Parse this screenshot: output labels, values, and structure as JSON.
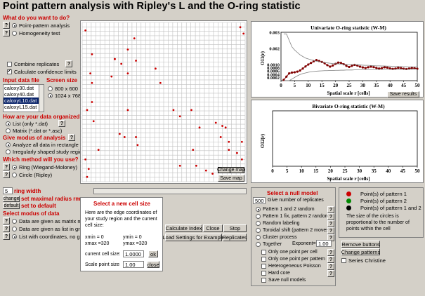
{
  "title": "Point pattern analysis with Ripley's L and the O-ring statistic",
  "question_todo": "What do you want to do?",
  "todo_options": [
    "Point-pattern analysis",
    "Homogeneity test"
  ],
  "combine_replicates": "Combine replicates",
  "calc_conf": "Calculate confidence limits",
  "input_file_label": "Input data file",
  "screen_size_label": "Screen size",
  "files": [
    "caloxy30.dat",
    "caloxy40.dat",
    "caloxyL10.dat",
    "caloxyL15.dat"
  ],
  "selected_file_index": 2,
  "screen_options": [
    "800 x 600",
    "1024 x 768"
  ],
  "organized_label": "How are your data organized?",
  "organized_options": [
    "List   (only *.dat)",
    "Matrix (*.dat or *.asc)"
  ],
  "analysis_label": "Give modus of analysis",
  "analysis_options": [
    "Analyze all data in rectangle",
    "Irregularly shaped study region"
  ],
  "method_label": "Which method will you use?",
  "method_options": [
    "Ring (Wiegand-Moloney)",
    "Circle (Ripley)"
  ],
  "ring_width_value": "5",
  "ring_width_label": "ring width",
  "change_btn": "change",
  "change_label": "set maximal radius rmax",
  "default_btn": "default",
  "default_label": "set to default",
  "modus_data_label": "Select modus of data",
  "modus_options": [
    "Data are given as matrix map",
    "Data are given as list in grid",
    "List with coordinates, no grid"
  ],
  "map_buttons": {
    "change": "Change map",
    "save": "Save map"
  },
  "cell_panel": {
    "heading": "Select a new cell size",
    "desc": "Here are the edge coordinates of your study region and the current cell size:",
    "xmin": "xmin = 0",
    "ymin": "ymin = 0",
    "xmax": "xmax =320",
    "ymax": "ymax =320",
    "cell_label": "current cell size:",
    "cell_value": "1.0000",
    "ok": "ok",
    "scale_label": "Scale point size",
    "scale_value": "1.00",
    "close": "close"
  },
  "action_buttons": {
    "calc": "Calculate Index",
    "close": "Close",
    "stop": "Stop",
    "load": "Load Settings for Example",
    "replicates": "Replicates"
  },
  "null_panel": {
    "heading": "Select a null model",
    "num_value": "500",
    "num_label": "Give number of replicates",
    "options": [
      "Pattern 1 and 2 random",
      "Pattern 1 fix, pattern 2 random",
      "Random labeling",
      "Toroidal shift (pattern 2 moves)",
      "Cluster process",
      "Together"
    ],
    "exponent_label": "Exponent=",
    "exponent_value": "1.00",
    "checks": [
      "Only one point per cell",
      "Only one point per pattern",
      "Heterogeneous Poisson",
      "Hard core",
      "Save null models"
    ]
  },
  "legend": {
    "items": [
      "Point(s) of pattern 1",
      "Point(s) of pattern 2",
      "Point(s) of pattern 1 and 2"
    ],
    "colors": [
      "#cc0000",
      "#008800",
      "#000000"
    ],
    "note": "The size of the circles is proportional to the number of points within the cell"
  },
  "bottom_right": {
    "remove": "Remove buttons",
    "change": "Change patterns",
    "series": "Series Christine"
  },
  "uni_chart_ylabel": "O11(r)",
  "bi_chart_ylabel": "O12(r)",
  "chart_data": [
    {
      "type": "line",
      "title": "Univariate O-ring statistic (W-M)",
      "xlabel": "Spatial scale r [cells]",
      "ylabel": "O11(r)",
      "xlim": [
        0,
        50
      ],
      "ylim": [
        0,
        0.003
      ],
      "x_ticks": [
        "0",
        "5",
        "10",
        "15",
        "20",
        "25",
        "30",
        "35",
        "40",
        "45",
        "50"
      ],
      "y_ticks": [
        "0.003",
        "0.002",
        "0.0010",
        "0.0008",
        "0.0006",
        "0.0004",
        "0.0002"
      ],
      "x": [
        1,
        2,
        3,
        4,
        5,
        6,
        7,
        8,
        9,
        10,
        11,
        12,
        13,
        14,
        15,
        16,
        17,
        18,
        19,
        20,
        21,
        22,
        23,
        24,
        25,
        26,
        27,
        28,
        29,
        30,
        31,
        32,
        33,
        34,
        35,
        36,
        37,
        38,
        39,
        40,
        41,
        42,
        43,
        44,
        45,
        46,
        47,
        48,
        49,
        50
      ],
      "series": [
        {
          "values": [
            5e-05,
            0.00025,
            0.00045,
            0.0005,
            0.00052,
            0.00056,
            0.00063,
            0.00075,
            0.00088,
            0.001,
            0.0011,
            0.0012,
            0.00128,
            0.00122,
            0.00116,
            0.00108,
            0.00096,
            0.00087,
            0.00094,
            0.00104,
            0.00112,
            0.0011,
            0.00102,
            0.00092,
            0.00085,
            0.00092,
            0.00098,
            0.00094,
            0.00087,
            0.00082,
            0.00078,
            0.00083,
            0.00087,
            0.00084,
            0.00079,
            0.00075,
            0.00078,
            0.00083,
            0.00081,
            0.00076,
            0.00073,
            0.00075,
            0.0008,
            0.00078,
            0.00074,
            0.00072,
            0.00075,
            0.00079,
            0.00077,
            0.00074
          ],
          "color": "#800000",
          "marker": "circle"
        },
        {
          "values": [
            0.0029,
            0.0029,
            0.0025,
            0.0021,
            0.0019,
            0.00175,
            0.0016,
            0.0015,
            0.0014,
            0.00135,
            0.0013,
            0.00125,
            0.0012,
            0.00118,
            0.00116,
            0.00112,
            0.0011,
            0.00108,
            0.00106,
            0.00105,
            0.00104,
            0.00103,
            0.00102,
            0.00101,
            0.001,
            0.001,
            0.00099,
            0.00098,
            0.00097,
            0.00096,
            0.00095,
            0.00095,
            0.00094,
            0.00093,
            0.00092,
            0.00092,
            0.00091,
            0.00091,
            0.0009,
            0.0009,
            0.00089,
            0.00089,
            0.00088,
            0.00088,
            0.00087,
            0.00087,
            0.00086,
            0.00086,
            0.00086,
            0.00085
          ],
          "color": "#808080",
          "role": "upper"
        },
        {
          "values": [
            0,
            0,
            0,
            0.0001,
            0.0002,
            0.0003,
            0.00038,
            0.00044,
            0.00048,
            0.00052,
            0.00055,
            0.00057,
            0.00059,
            0.0006,
            0.00061,
            0.00062,
            0.00062,
            0.00063,
            0.00063,
            0.00064,
            0.00064,
            0.00065,
            0.00065,
            0.00066,
            0.00066,
            0.00066,
            0.00067,
            0.00067,
            0.00067,
            0.00068,
            0.00068,
            0.00068,
            0.00068,
            0.00069,
            0.00069,
            0.00069,
            0.00069,
            0.0007,
            0.0007,
            0.0007,
            0.0007,
            0.0007,
            0.00071,
            0.00071,
            0.00071,
            0.00071,
            0.00071,
            0.00071,
            0.00072,
            0.00072
          ],
          "color": "#808080",
          "role": "lower"
        }
      ]
    },
    {
      "type": "line",
      "title": "Bivariate O-ring statistic (W-M)",
      "xlabel": "Spatial scale r [cells]",
      "ylabel": "O12(r)",
      "xlim": [
        0,
        50
      ],
      "x_ticks": [
        "0",
        "5",
        "10",
        "15",
        "20",
        "25",
        "30",
        "35",
        "40",
        "45",
        "50"
      ],
      "series": []
    }
  ],
  "save_results": "Save results",
  "map_points": [
    [
      0.02,
      0.05
    ],
    [
      0.06,
      0.2
    ],
    [
      0.05,
      0.32
    ],
    [
      0.06,
      0.38
    ],
    [
      0.03,
      0.55
    ],
    [
      0.07,
      0.62
    ],
    [
      0.28,
      0.17
    ],
    [
      0.2,
      0.23
    ],
    [
      0.24,
      0.26
    ],
    [
      0.1,
      0.8
    ],
    [
      0.02,
      0.86
    ],
    [
      0.04,
      0.92
    ],
    [
      0.03,
      0.97
    ],
    [
      0.28,
      0.32
    ],
    [
      0.18,
      0.34
    ],
    [
      0.32,
      0.1
    ],
    [
      0.33,
      0.24
    ],
    [
      0.28,
      0.55
    ],
    [
      0.23,
      0.7
    ],
    [
      0.26,
      0.72
    ],
    [
      0.33,
      0.72
    ],
    [
      0.34,
      0.77
    ],
    [
      0.45,
      0.29
    ],
    [
      0.48,
      0.38
    ],
    [
      0.56,
      0.55
    ],
    [
      0.6,
      0.59
    ],
    [
      0.67,
      0.55
    ],
    [
      0.68,
      0.8
    ],
    [
      0.6,
      0.9
    ],
    [
      0.7,
      0.9
    ],
    [
      0.76,
      0.93
    ],
    [
      0.8,
      0.95
    ],
    [
      0.72,
      0.66
    ],
    [
      0.82,
      0.63
    ],
    [
      0.86,
      0.65
    ],
    [
      0.88,
      0.66
    ],
    [
      0.85,
      0.72
    ],
    [
      0.9,
      0.8
    ],
    [
      0.95,
      0.82
    ],
    [
      0.98,
      0.75
    ],
    [
      0.98,
      0.86
    ],
    [
      0.97,
      0.03
    ],
    [
      0.99,
      0.07
    ],
    [
      0.9,
      0.75
    ],
    [
      0.06,
      0.5
    ],
    [
      0.2,
      0.23
    ]
  ]
}
